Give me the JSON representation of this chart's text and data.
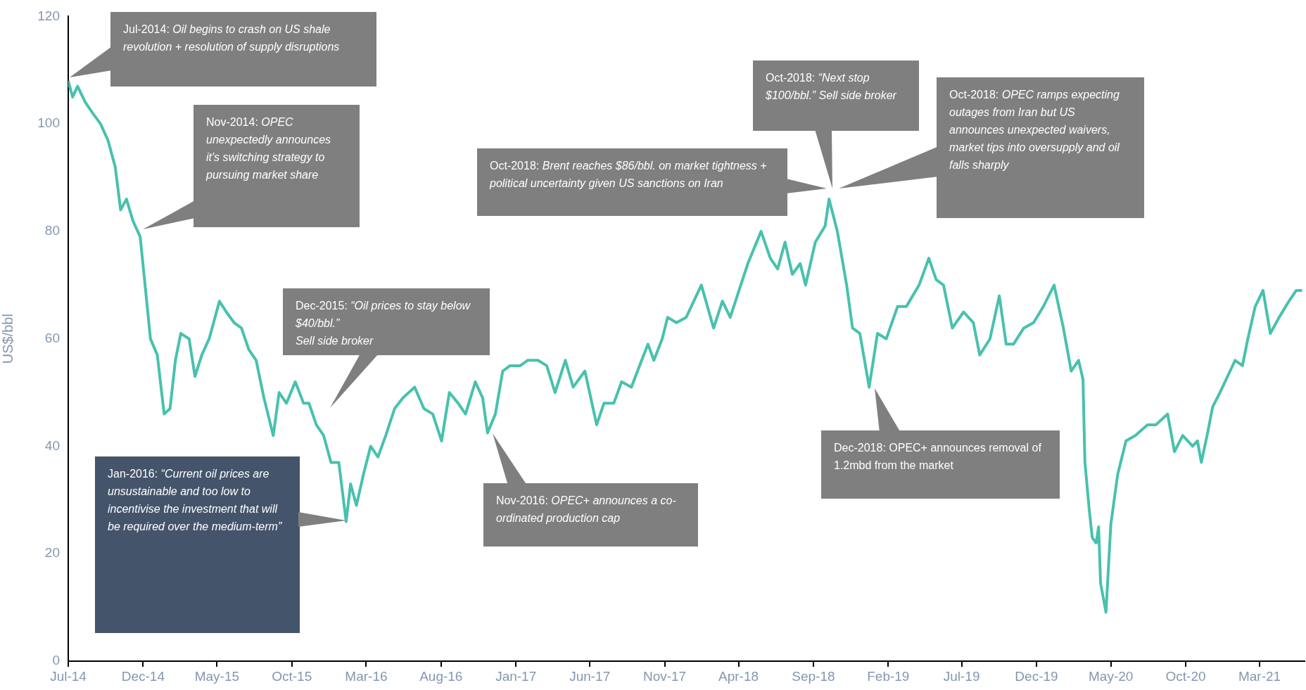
{
  "chart_data": {
    "type": "line",
    "ylabel": "US$/bbl",
    "color": "#48c1ae",
    "x": [
      "2014-07-01",
      "2014-07-10",
      "2014-07-20",
      "2014-08-05",
      "2014-08-20",
      "2014-09-05",
      "2014-09-20",
      "2014-10-05",
      "2014-10-16",
      "2014-10-28",
      "2014-11-10",
      "2014-11-25",
      "2014-12-05",
      "2014-12-16",
      "2014-12-30",
      "2015-01-13",
      "2015-01-25",
      "2015-02-05",
      "2015-02-16",
      "2015-03-05",
      "2015-03-17",
      "2015-03-31",
      "2015-04-15",
      "2015-05-06",
      "2015-05-20",
      "2015-06-05",
      "2015-06-20",
      "2015-07-05",
      "2015-07-20",
      "2015-08-05",
      "2015-08-24",
      "2015-09-05",
      "2015-09-20",
      "2015-10-08",
      "2015-10-25",
      "2015-11-05",
      "2015-11-20",
      "2015-12-05",
      "2015-12-20",
      "2016-01-05",
      "2016-01-20",
      "2016-01-29",
      "2016-02-10",
      "2016-02-25",
      "2016-03-10",
      "2016-03-25",
      "2016-04-10",
      "2016-04-28",
      "2016-05-15",
      "2016-06-08",
      "2016-06-27",
      "2016-07-15",
      "2016-08-02",
      "2016-08-18",
      "2016-09-05",
      "2016-09-20",
      "2016-10-10",
      "2016-10-25",
      "2016-11-04",
      "2016-11-20",
      "2016-12-05",
      "2016-12-20",
      "2017-01-10",
      "2017-01-25",
      "2017-02-15",
      "2017-03-05",
      "2017-03-22",
      "2017-04-12",
      "2017-04-28",
      "2017-05-22",
      "2017-06-15",
      "2017-06-30",
      "2017-07-20",
      "2017-08-05",
      "2017-08-25",
      "2017-09-15",
      "2017-09-28",
      "2017-10-10",
      "2017-10-27",
      "2017-11-07",
      "2017-11-25",
      "2017-12-15",
      "2018-01-15",
      "2018-02-09",
      "2018-02-27",
      "2018-03-15",
      "2018-04-02",
      "2018-04-20",
      "2018-05-17",
      "2018-06-05",
      "2018-06-20",
      "2018-07-05",
      "2018-07-20",
      "2018-08-05",
      "2018-08-16",
      "2018-09-05",
      "2018-09-25",
      "2018-10-03",
      "2018-10-20",
      "2018-11-08",
      "2018-11-20",
      "2018-12-05",
      "2018-12-24",
      "2019-01-10",
      "2019-01-28",
      "2019-02-20",
      "2019-03-10",
      "2019-04-05",
      "2019-04-25",
      "2019-05-10",
      "2019-05-25",
      "2019-06-12",
      "2019-07-05",
      "2019-07-25",
      "2019-08-07",
      "2019-08-28",
      "2019-09-16",
      "2019-09-30",
      "2019-10-15",
      "2019-11-05",
      "2019-11-25",
      "2019-12-15",
      "2020-01-06",
      "2020-01-25",
      "2020-02-10",
      "2020-02-25",
      "2020-03-05",
      "2020-03-09",
      "2020-03-18",
      "2020-03-24",
      "2020-04-01",
      "2020-04-06",
      "2020-04-10",
      "2020-04-21",
      "2020-05-01",
      "2020-05-15",
      "2020-06-01",
      "2020-06-20",
      "2020-07-15",
      "2020-08-01",
      "2020-08-25",
      "2020-09-08",
      "2020-09-25",
      "2020-10-15",
      "2020-10-25",
      "2020-11-02",
      "2020-11-15",
      "2020-11-25",
      "2020-12-10",
      "2021-01-10",
      "2021-01-25",
      "2021-02-05",
      "2021-02-20",
      "2021-03-08",
      "2021-03-23",
      "2021-04-10",
      "2021-04-30",
      "2021-05-15",
      "2021-05-27"
    ],
    "values": [
      108,
      105,
      107,
      104,
      102,
      100,
      97,
      92,
      84,
      86,
      82,
      79,
      70,
      60,
      57,
      46,
      47,
      56,
      61,
      60,
      53,
      57,
      60,
      67,
      65,
      63,
      62,
      58,
      56,
      49,
      42,
      50,
      48,
      52,
      48,
      48,
      44,
      42,
      37,
      37,
      26,
      33,
      29,
      35,
      40,
      38,
      42,
      47,
      49,
      51,
      47,
      46,
      41,
      50,
      48,
      46,
      52,
      49,
      42.5,
      46,
      54,
      55,
      55,
      56,
      56,
      55,
      50,
      56,
      51,
      54,
      44,
      48,
      48,
      52,
      51,
      56,
      59,
      56,
      60,
      64,
      63,
      64,
      70,
      62,
      67,
      64,
      69,
      74,
      80,
      75,
      73,
      78,
      72,
      74,
      70,
      78,
      81,
      86,
      80,
      70,
      62,
      61,
      51,
      61,
      60,
      66,
      66,
      70,
      75,
      71,
      70,
      62,
      65,
      63,
      57,
      60,
      68,
      59,
      59,
      62,
      63,
      66,
      70,
      62,
      54,
      56,
      52.5,
      37,
      28,
      23,
      22,
      25,
      14.5,
      9.1,
      25.5,
      34.8,
      41,
      42,
      44,
      44,
      46,
      39,
      42,
      40,
      41,
      37,
      42.6,
      47.3,
      50,
      56,
      55,
      60,
      66,
      69,
      61,
      64,
      67,
      69,
      69
    ],
    "xlim": [
      "2014-07-01",
      "2021-06-01"
    ],
    "xticks": [
      {
        "value": "2014-07-01",
        "label": "Jul-14"
      },
      {
        "value": "2014-12-01",
        "label": "Dec-14"
      },
      {
        "value": "2015-05-01",
        "label": "May-15"
      },
      {
        "value": "2015-10-01",
        "label": "Oct-15"
      },
      {
        "value": "2016-03-01",
        "label": "Mar-16"
      },
      {
        "value": "2016-08-01",
        "label": "Aug-16"
      },
      {
        "value": "2017-01-01",
        "label": "Jan-17"
      },
      {
        "value": "2017-06-01",
        "label": "Jun-17"
      },
      {
        "value": "2017-11-01",
        "label": "Nov-17"
      },
      {
        "value": "2018-04-01",
        "label": "Apr-18"
      },
      {
        "value": "2018-09-01",
        "label": "Sep-18"
      },
      {
        "value": "2019-02-01",
        "label": "Feb-19"
      },
      {
        "value": "2019-07-01",
        "label": "Jul-19"
      },
      {
        "value": "2019-12-01",
        "label": "Dec-19"
      },
      {
        "value": "2020-05-01",
        "label": "May-20"
      },
      {
        "value": "2020-10-01",
        "label": "Oct-20"
      },
      {
        "value": "2021-03-01",
        "label": "Mar-21"
      }
    ],
    "ylim": [
      0,
      120
    ],
    "yticks": [
      0,
      20,
      40,
      60,
      80,
      100,
      120
    ],
    "annotations": [
      "Jul-2014: Oil begins to crash on US shale revolution + resolution of supply disruptions",
      "Nov-2014: OPEC unexpectedly announces it's switching strategy to pursuing market share",
      "Dec-2015: “Oil prices to stay below $40/bbl.”\nSell side broker",
      "Jan-2016: “Current oil prices are unsustainable and too low to incentivise the investment that will be required over the medium-term”",
      "Nov-2016: OPEC+ announces a co-ordinated production cap",
      "Oct-2018: Brent reaches $86/bbl. on market tightness + political uncertainty given US sanctions on Iran",
      "Oct-2018: “Next stop $100/bbl.” Sell side broker",
      "Oct-2018: OPEC ramps expecting outages from Iran but US announces unexpected waivers, market tips into oversupply and oil falls sharply",
      "Dec-2018: OPEC+ announces removal of 1.2mbd from the market"
    ]
  }
}
